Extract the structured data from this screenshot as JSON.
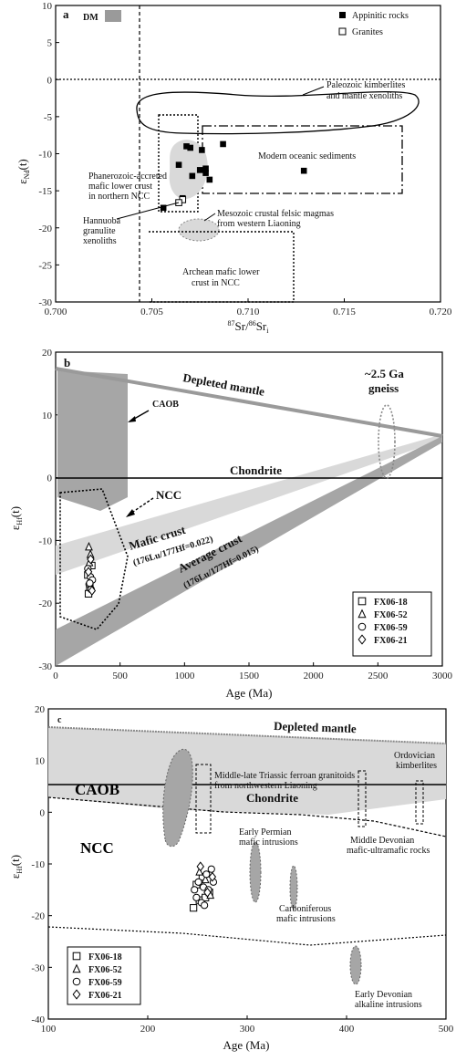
{
  "chart_data": [
    {
      "type": "scatter",
      "panel_label": "a",
      "xlabel": "87Sr/86Sr",
      "xlabel_sup": "87",
      "xlabel_mid": "Sr/",
      "xlabel_sup2": "86",
      "xlabel_end": "Sr",
      "xlabel_sub": "i",
      "ylabel": "ε",
      "ylabel_sub": "Nd",
      "ylabel_end": "(t)",
      "xlim": [
        0.7,
        0.72
      ],
      "ylim": [
        -30,
        10
      ],
      "xticks": [
        "0.700",
        "0.705",
        "0.710",
        "0.715",
        "0.720"
      ],
      "yticks": [
        "10",
        "5",
        "0",
        "-5",
        "-10",
        "-15",
        "-20",
        "-25",
        "-30"
      ],
      "legend": [
        {
          "name": "Appinitic rocks",
          "marker": "filled-square"
        },
        {
          "name": "Granites",
          "marker": "open-square"
        }
      ],
      "series": [
        {
          "name": "Appinitic rocks",
          "x": [
            0.7056,
            0.7068,
            0.707,
            0.7075,
            0.7078,
            0.708,
            0.7071,
            0.7064,
            0.7078,
            0.7076,
            0.7066,
            0.7087,
            0.7129
          ],
          "y": [
            -17.3,
            -9.0,
            -9.2,
            -12.2,
            -12.6,
            -13.5,
            -13.0,
            -11.5,
            -12.0,
            -9.5,
            -16.0,
            -8.7,
            -12.3
          ]
        },
        {
          "name": "Granites",
          "x": [
            0.7066,
            0.7064
          ],
          "y": [
            -16.2,
            -16.6
          ]
        }
      ],
      "annotations": {
        "dm": "DM",
        "kimberlites": [
          "Paleozoic kimberlites",
          "and mantle xenoliths"
        ],
        "sediments": "Modern oceanic sediments",
        "phanerozoic": [
          "Phanerozoic-accreted",
          "mafic lower crust",
          "in northern NCC"
        ],
        "hannuoba": [
          "Hannuoba",
          "granulite",
          "xenoliths"
        ],
        "mesozoic": [
          "Mesozoic crustal felsic magmas",
          "from western Liaoning"
        ],
        "archean": [
          "Archean mafic lower",
          "crust in NCC"
        ]
      }
    },
    {
      "type": "scatter",
      "panel_label": "b",
      "xlabel": "Age (Ma)",
      "ylabel": "ε",
      "ylabel_sub": "Hf",
      "ylabel_end": "(t)",
      "xlim": [
        0,
        3000
      ],
      "ylim": [
        -30,
        20
      ],
      "xticks": [
        "0",
        "500",
        "1000",
        "1500",
        "2000",
        "2500",
        "3000"
      ],
      "yticks": [
        "20",
        "10",
        "0",
        "-10",
        "-20",
        "-30"
      ],
      "legend": [
        "FX06-18",
        "FX06-52",
        "FX06-59",
        "FX06-21"
      ],
      "series": [
        {
          "name": "FX06-18",
          "x": [
            250,
            265,
            280,
            255
          ],
          "y": [
            -15.5,
            -17.5,
            -14.0,
            -18.5
          ]
        },
        {
          "name": "FX06-52",
          "x": [
            258,
            270,
            262
          ],
          "y": [
            -11.0,
            -12.2,
            -13.5
          ]
        },
        {
          "name": "FX06-59",
          "x": [
            250,
            270,
            285,
            260,
            275,
            265
          ],
          "y": [
            -14.5,
            -15.8,
            -16.3,
            -17.0,
            -17.8,
            -16.8
          ]
        },
        {
          "name": "FX06-21",
          "x": [
            255,
            272,
            282
          ],
          "y": [
            -15.0,
            -13.0,
            -18.0
          ]
        }
      ],
      "annotations": {
        "depleted": "Depleted mantle",
        "gneiss": [
          "~2.5 Ga",
          "gneiss"
        ],
        "caob": "CAOB",
        "chondrite": "Chondrite",
        "ncc": "NCC",
        "mafic": "Mafic crust",
        "mafic_ratio": "(176Lu/177Hf=0.022)",
        "average": "Average crust",
        "average_ratio": "(176Lu/177Hf=0.015)"
      }
    },
    {
      "type": "scatter",
      "panel_label": "c",
      "xlabel": "Age (Ma)",
      "ylabel": "ε",
      "ylabel_sub": "Hf",
      "ylabel_end": "(t)",
      "xlim": [
        100,
        500
      ],
      "ylim": [
        -40,
        20
      ],
      "xticks": [
        "100",
        "200",
        "300",
        "400",
        "500"
      ],
      "yticks": [
        "20",
        "10",
        "0",
        "-10",
        "-20",
        "-30",
        "-40"
      ],
      "legend": [
        "FX06-18",
        "FX06-52",
        "FX06-59",
        "FX06-21"
      ],
      "series": [
        {
          "name": "FX06-18",
          "x": [
            246,
            252,
            258,
            262,
            249,
            255
          ],
          "y": [
            -18.5,
            -17.0,
            -16.5,
            -15.5,
            -14.0,
            -12.5
          ]
        },
        {
          "name": "FX06-52",
          "x": [
            252,
            258,
            263
          ],
          "y": [
            -11.5,
            -13.0,
            -16.0
          ]
        },
        {
          "name": "FX06-59",
          "x": [
            247,
            251,
            256,
            261,
            266,
            249,
            254,
            259,
            264,
            257
          ],
          "y": [
            -15.0,
            -13.5,
            -14.5,
            -15.0,
            -13.5,
            -16.5,
            -17.5,
            -12.0,
            -11.0,
            -18.0
          ]
        },
        {
          "name": "FX06-21",
          "x": [
            253,
            260,
            265
          ],
          "y": [
            -10.5,
            -15.5,
            -12.5
          ]
        }
      ],
      "annotations": {
        "depleted": "Depleted mantle",
        "caob": "CAOB",
        "chondrite": "Chondrite",
        "ncc": "NCC",
        "triassic": [
          "Middle-late Triassic ferroan granitoids",
          "from northwestern Liaoning"
        ],
        "ordovician": [
          "Ordovician",
          "kimberlites"
        ],
        "permian": [
          "Early Permian",
          "mafic intrusions"
        ],
        "carboniferous": [
          "Carboniferous",
          "mafic intrusions"
        ],
        "devonian_mid": [
          "Middle Devonian",
          "mafic-ultramafic rocks"
        ],
        "devonian_early": [
          "Early Devonian",
          "alkaline  intrusions"
        ]
      }
    }
  ],
  "colors": {
    "field": "#d9d9d9",
    "field_dark": "#a6a6a6",
    "ellipse": "#888888",
    "dm_line": "#9a9a9a"
  }
}
